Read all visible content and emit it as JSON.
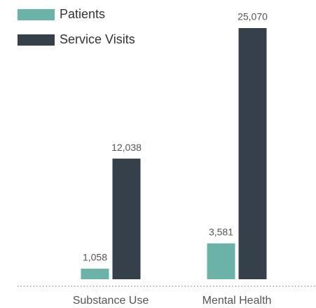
{
  "chart_data": {
    "type": "bar",
    "categories": [
      "Substance Use",
      "Mental Health"
    ],
    "series": [
      {
        "name": "Patients",
        "color": "#6bb3a8",
        "values": [
          1058,
          3581
        ],
        "value_labels": [
          "1,058",
          "3,581"
        ]
      },
      {
        "name": "Service Visits",
        "color": "#36404a",
        "values": [
          12038,
          25070
        ],
        "value_labels": [
          "12,038",
          "25,070"
        ]
      }
    ],
    "legend": "top-left"
  }
}
